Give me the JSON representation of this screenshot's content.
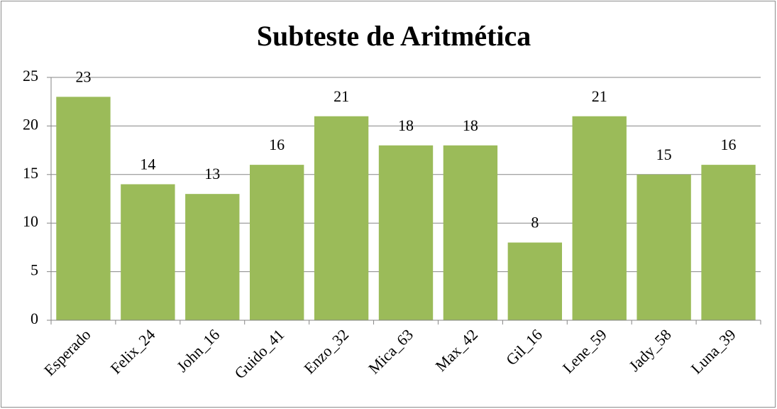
{
  "chart_data": {
    "type": "bar",
    "title": "Subteste de Aritmética",
    "categories": [
      "Esperado",
      "Felix_24",
      "John_16",
      "Guido_41",
      "Enzo_32",
      "Mica_63",
      "Max_42",
      "Gil_16",
      "Lene_59",
      "Jady_58",
      "Luna_39"
    ],
    "values": [
      23,
      14,
      13,
      16,
      21,
      18,
      18,
      8,
      21,
      15,
      16
    ],
    "color": "#9bbb59",
    "ylim": [
      0,
      25
    ],
    "yticks": [
      0,
      5,
      10,
      15,
      20,
      25
    ],
    "grid": true
  }
}
